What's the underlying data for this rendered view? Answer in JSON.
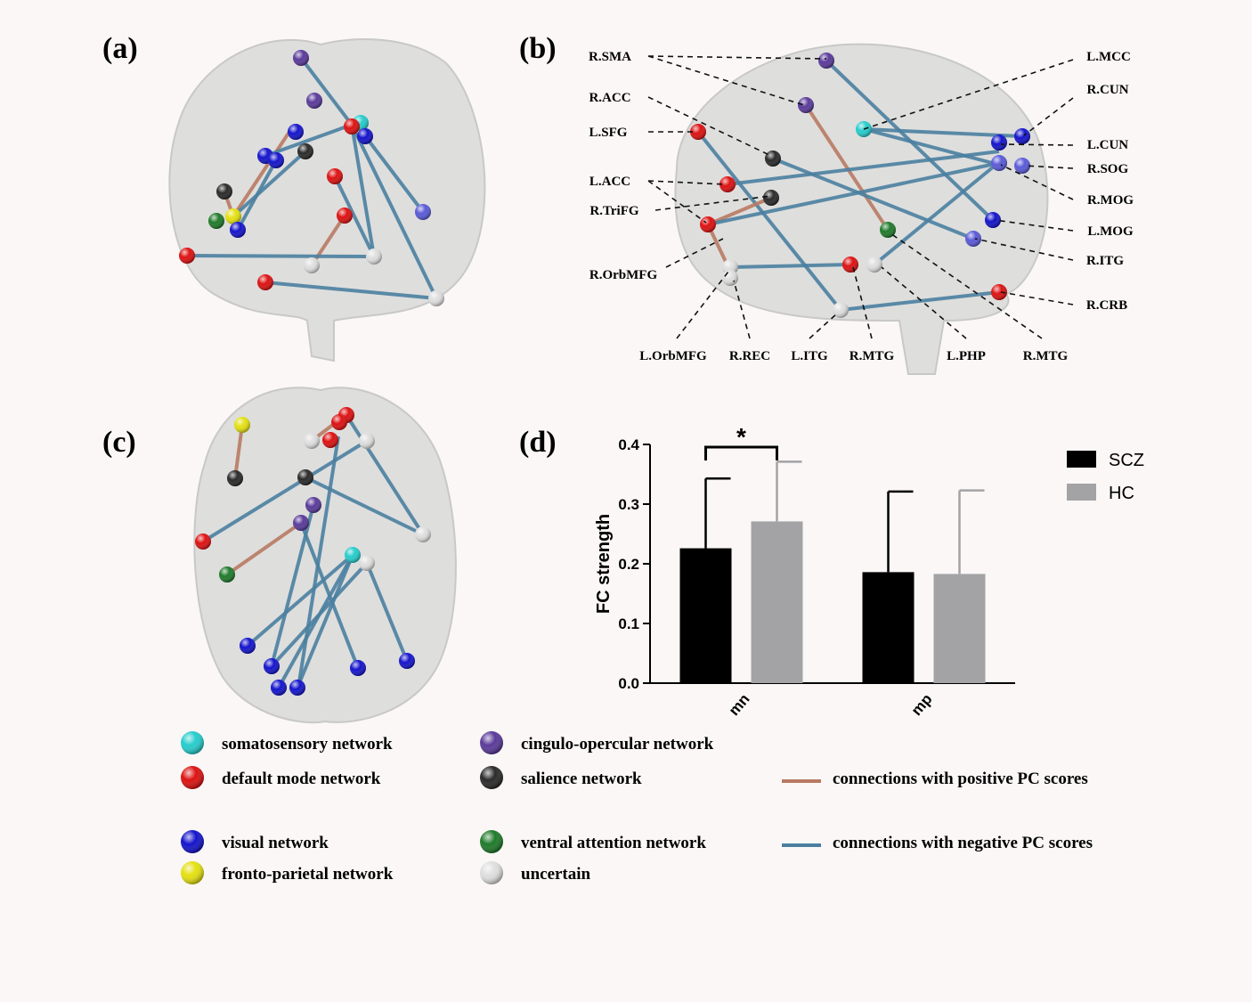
{
  "panels": [
    "(a)",
    "(b)",
    "(c)",
    "(d)"
  ],
  "panel_b": {
    "labels": [
      "R.SMA",
      "R.ACC",
      "L.SFG",
      "L.ACC",
      "R.TriFG",
      "R.OrbMFG",
      "L.OrbMFG",
      "R.REC",
      "L.ITG",
      "R.MTG",
      "L.PHP",
      "R.MTG",
      "L.MCC",
      "R.CUN",
      "L.CUN",
      "R.SOG",
      "R.MOG",
      "L.MOG",
      "R.ITG",
      "R.CRB"
    ]
  },
  "legend": {
    "networks": [
      "somatosensory network",
      "default mode network",
      "visual network",
      "fronto-parietal network",
      "cingulo-opercular network",
      "salience network",
      "ventral attention network",
      "uncertain"
    ],
    "connections": [
      "connections with positive PC scores",
      "connections with negative PC scores"
    ]
  },
  "chart_data": {
    "type": "bar",
    "ylabel": "FC strength",
    "categories": [
      "mn",
      "mp"
    ],
    "series": [
      {
        "name": "SCZ",
        "color": "#000000",
        "values": [
          0.226,
          0.186
        ],
        "errors": [
          0.117,
          0.135
        ]
      },
      {
        "name": "HC",
        "color": "#a3a3a6",
        "values": [
          0.271,
          0.183
        ],
        "errors": [
          0.1,
          0.14
        ]
      }
    ],
    "ylim": [
      0,
      0.4
    ],
    "yticks": [
      {
        "value": 0,
        "label": "0.0"
      },
      0.1,
      0.2,
      0.3,
      0.4
    ],
    "annotation": "*"
  }
}
